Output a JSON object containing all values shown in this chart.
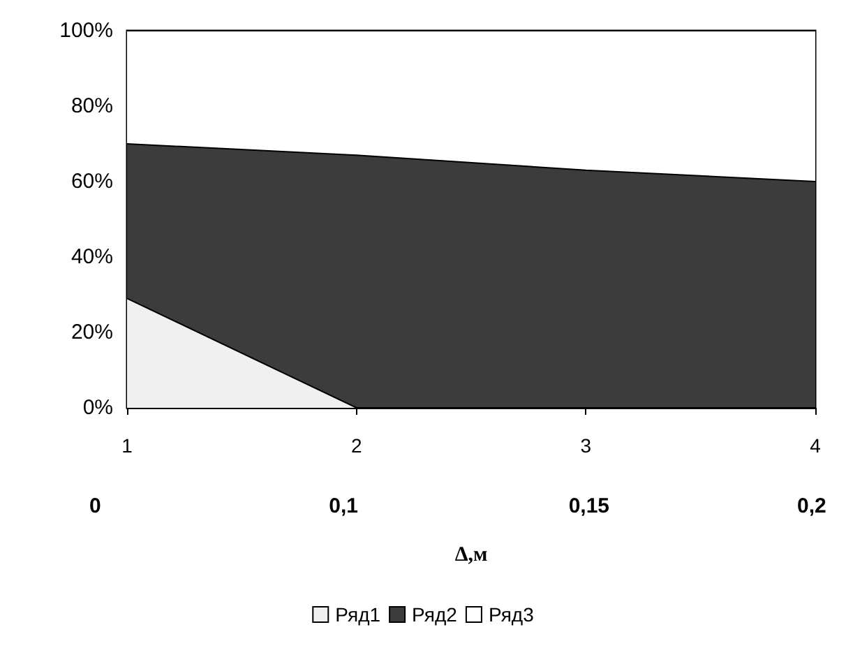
{
  "chart_data": {
    "type": "area",
    "stacked": true,
    "categories": [
      "1",
      "2",
      "3",
      "4"
    ],
    "series": [
      {
        "name": "Ряд1",
        "color": "#f0f0f0",
        "values": [
          29,
          0,
          0,
          0
        ]
      },
      {
        "name": "Ряд2",
        "color": "#3c3c3c",
        "values": [
          41,
          67,
          63,
          60
        ]
      },
      {
        "name": "Ряд3",
        "color": "#ffffff",
        "values": [
          30,
          33,
          37,
          40
        ]
      }
    ],
    "ylim": [
      0,
      100
    ],
    "yticks": [
      {
        "value": 0,
        "label": "0%"
      },
      {
        "value": 20,
        "label": "20%"
      },
      {
        "value": 40,
        "label": "40%"
      },
      {
        "value": 60,
        "label": "60%"
      },
      {
        "value": 80,
        "label": "80%"
      },
      {
        "value": 100,
        "label": "100%"
      }
    ],
    "xlabel": "Δ,м",
    "annotations": [
      "0",
      "0,1",
      "0,15",
      "0,2"
    ],
    "grid": false,
    "legend": "bottom"
  }
}
